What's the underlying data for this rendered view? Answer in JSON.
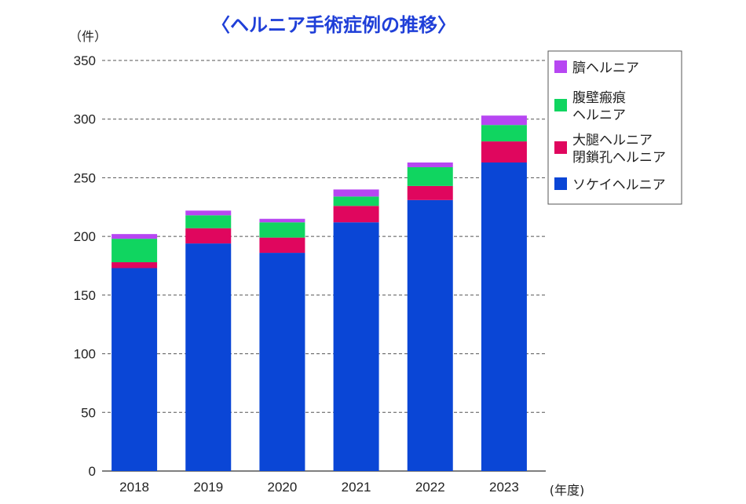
{
  "chart_data": {
    "type": "bar",
    "stacked": true,
    "title": "〈ヘルニア手術症例の推移〉",
    "ylabel": "（件）",
    "xlabel": "(年度)",
    "categories": [
      "2018",
      "2019",
      "2020",
      "2021",
      "2022",
      "2023"
    ],
    "ylim": [
      0,
      350
    ],
    "yticks": [
      0,
      50,
      100,
      150,
      200,
      250,
      300,
      350
    ],
    "grid": "dashed horizontal",
    "legend_position": "right",
    "series": [
      {
        "name": "ソケイヘルニア",
        "color": "#0a46d6",
        "values": [
          173,
          194,
          186,
          212,
          231,
          263
        ]
      },
      {
        "name": "大腿ヘルニア\n閉鎖孔ヘルニア",
        "color": "#e0065e",
        "values": [
          5,
          13,
          13,
          14,
          12,
          18
        ]
      },
      {
        "name": "腹壁瘢痕\nヘルニア",
        "color": "#10d560",
        "values": [
          20,
          11,
          13,
          8,
          16,
          14
        ]
      },
      {
        "name": "臍ヘルニア",
        "color": "#b746f2",
        "values": [
          4,
          4,
          3,
          6,
          4,
          8
        ]
      }
    ],
    "legend_order": [
      3,
      2,
      1,
      0
    ]
  }
}
